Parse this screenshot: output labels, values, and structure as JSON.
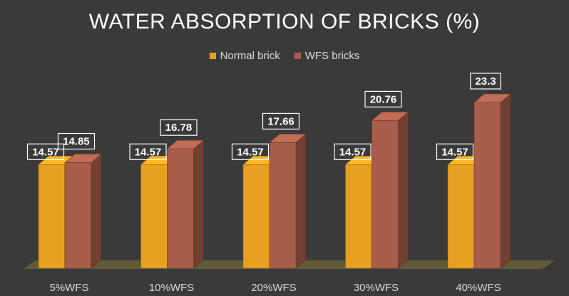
{
  "chart_data": {
    "type": "bar",
    "title": "WATER ABSORPTION OF BRICKS (%)",
    "categories": [
      "5%WFS",
      "10%WFS",
      "20%WFS",
      "30%WFS",
      "40%WFS"
    ],
    "series": [
      {
        "name": "Normal brick",
        "values": [
          14.57,
          14.57,
          14.57,
          14.57,
          14.57
        ],
        "color": "#e8a020"
      },
      {
        "name": "WFS bricks",
        "values": [
          14.85,
          16.78,
          17.66,
          20.76,
          23.3
        ],
        "color": "#a85e4a"
      }
    ],
    "data_labels": [
      [
        "14.57",
        "14.57",
        "14.57",
        "14.57",
        "14.57"
      ],
      [
        "14.85",
        "16.78",
        "17.66",
        "20.76",
        "23.3"
      ]
    ],
    "ylim": [
      0,
      25
    ],
    "gridlines": false,
    "legend_position": "top",
    "style": "3d-bar"
  }
}
